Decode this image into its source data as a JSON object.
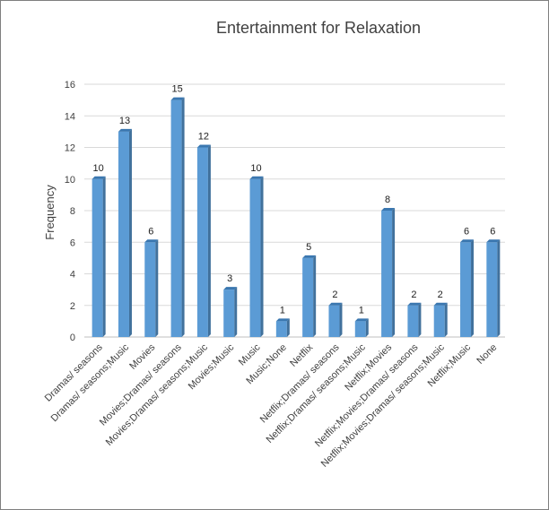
{
  "chart_data": {
    "type": "bar",
    "title": "Entertainment for Relaxation",
    "xlabel": "",
    "ylabel": "Frequency",
    "ylim": [
      0,
      16
    ],
    "yticks": [
      0,
      2,
      4,
      6,
      8,
      10,
      12,
      14,
      16
    ],
    "grid": true,
    "legend": "none",
    "bar_color": "#5b9bd5",
    "categories": [
      "Dramas/ seasons",
      "Dramas/ seasons;Music",
      "Movies",
      "Movies;Dramas/ seasons",
      "Movies;Dramas/ seasons;Music",
      "Movies;Music",
      "Music",
      "Music;None",
      "Netflix",
      "Netflix;Dramas/ seasons",
      "Netflix;Dramas/ seasons;Music",
      "Netflix;Movies",
      "Netflix;Movies;Dramas/ seasons",
      "Netflix;Movies;Dramas/ seasons;Music",
      "Netflix;Music",
      "None"
    ],
    "values": [
      10,
      13,
      6,
      15,
      12,
      3,
      10,
      1,
      5,
      2,
      1,
      8,
      2,
      2,
      6,
      6
    ]
  }
}
